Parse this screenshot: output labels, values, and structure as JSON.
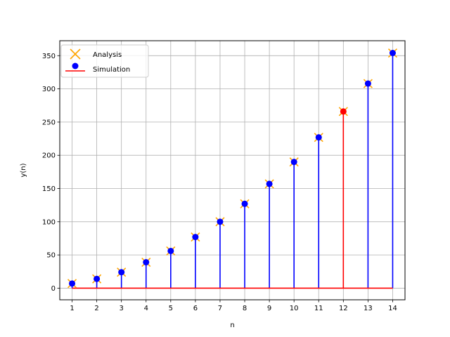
{
  "chart_data": {
    "type": "stem",
    "title": "",
    "xlabel": "n",
    "ylabel": "y(n)",
    "x": [
      1,
      2,
      3,
      4,
      5,
      6,
      7,
      8,
      9,
      10,
      11,
      12,
      13,
      14
    ],
    "x_tick_labels": [
      "1",
      "2",
      "3",
      "4",
      "5",
      "6",
      "7",
      "8",
      "9",
      "10",
      "11",
      "12",
      "13",
      "14"
    ],
    "y_ticks": [
      0,
      50,
      100,
      150,
      200,
      250,
      300,
      350
    ],
    "y_tick_labels": [
      "0",
      "50",
      "100",
      "150",
      "200",
      "250",
      "300",
      "350"
    ],
    "xlim": [
      0.5,
      14.5
    ],
    "ylim": [
      -17.5,
      372.5
    ],
    "grid": true,
    "legend_placement": "upper-left",
    "series": [
      {
        "name": "Analysis",
        "marker": "x",
        "color": "#ffa500",
        "values": [
          7,
          14,
          24,
          39,
          56,
          77,
          100,
          127,
          157,
          190,
          227,
          266,
          308,
          354
        ]
      },
      {
        "name": "Simulation",
        "marker": "o",
        "color": "#0000ff",
        "stem_color": "#0000ff",
        "baseline_color": "#ff0000",
        "highlight_index": 11,
        "highlight_color": "#ff0000",
        "values": [
          7,
          14,
          24,
          39,
          56,
          77,
          100,
          127,
          157,
          190,
          227,
          266,
          308,
          354
        ]
      }
    ]
  },
  "legend": {
    "analysis_label": "Analysis",
    "simulation_label": "Simulation"
  }
}
